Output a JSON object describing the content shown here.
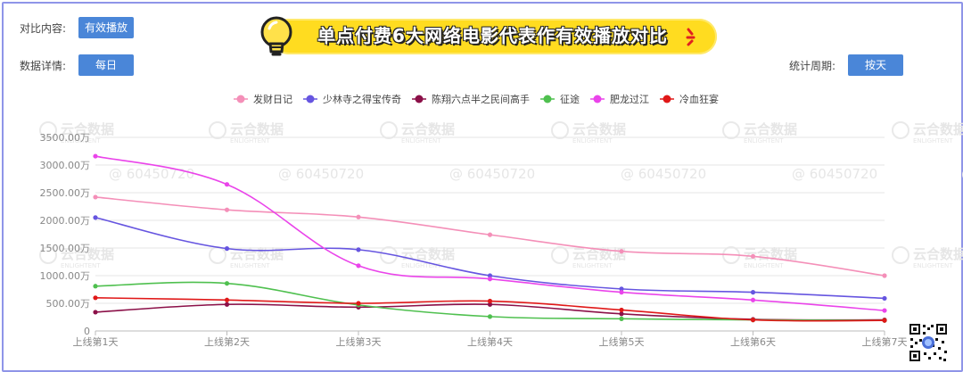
{
  "controls": {
    "compare_label": "对比内容:",
    "compare_value": "有效播放",
    "detail_label": "数据详情:",
    "detail_value": "每日",
    "period_label": "统计周期:",
    "period_value": "按天"
  },
  "title": "单点付费6大网络电影代表作有效播放对比",
  "watermarks": {
    "brand_cn": "云合数据",
    "brand_en": "ENLIGHTENT",
    "id": "@ 60450720"
  },
  "colors": {
    "accent_button": "#4a86d8",
    "title_bg": "#ffdc20",
    "frame": "#8f95e8"
  },
  "chart_data": {
    "type": "line",
    "title": "",
    "xlabel": "",
    "ylabel": "",
    "categories": [
      "上线第1天",
      "上线第2天",
      "上线第3天",
      "上线第4天",
      "上线第5天",
      "上线第6天",
      "上线第7天"
    ],
    "y_ticks": [
      "0",
      "500.00万",
      "1000.00万",
      "1500.00万",
      "2000.00万",
      "2500.00万",
      "3000.00万",
      "3500.00万"
    ],
    "ylim": [
      0,
      3500
    ],
    "y_unit": "万",
    "grid": true,
    "legend_position": "top",
    "series": [
      {
        "name": "发财日记",
        "color": "#f48fb8",
        "values": [
          2420,
          2190,
          2060,
          1740,
          1440,
          1350,
          1000
        ]
      },
      {
        "name": "少林寺之得宝传奇",
        "color": "#6655e0",
        "values": [
          2050,
          1490,
          1470,
          1000,
          760,
          700,
          590
        ]
      },
      {
        "name": "陈翔六点半之民间高手",
        "color": "#8b1048",
        "values": [
          340,
          480,
          430,
          480,
          310,
          210,
          200
        ]
      },
      {
        "name": "征途",
        "color": "#4fc04f",
        "values": [
          810,
          860,
          470,
          260,
          220,
          200,
          190
        ]
      },
      {
        "name": "肥龙过江",
        "color": "#ea44ea",
        "values": [
          3160,
          2650,
          1180,
          940,
          700,
          560,
          370
        ]
      },
      {
        "name": "冷血狂宴",
        "color": "#e01818",
        "values": [
          600,
          560,
          500,
          540,
          380,
          200,
          190
        ]
      }
    ]
  }
}
